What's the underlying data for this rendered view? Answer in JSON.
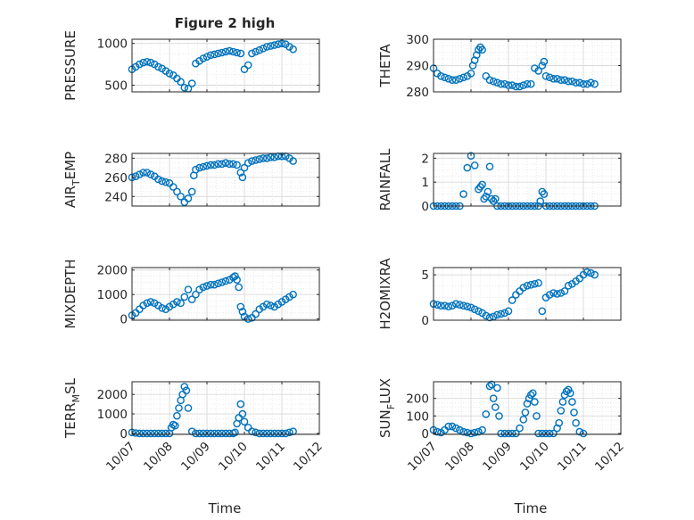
{
  "figure_title": "Figure 2 high",
  "chart_data": [
    {
      "type": "scatter",
      "ylabel": "PRESSURE",
      "xlim": [
        "10/07",
        "10/12"
      ],
      "ylim": [
        420,
        1050
      ],
      "yticks": [
        500,
        1000
      ],
      "xtick_labels": [
        "10/07",
        "10/08",
        "10/09",
        "10/10",
        "10/11",
        "10/12"
      ],
      "grid": "on",
      "series": [
        {
          "x": [
            0.0,
            0.1,
            0.2,
            0.3,
            0.4,
            0.5,
            0.6,
            0.7,
            0.8,
            0.9,
            1.0,
            1.1,
            1.2,
            1.3,
            1.4,
            1.5,
            1.6,
            1.7,
            1.8,
            1.9,
            2.0,
            2.1,
            2.2,
            2.3,
            2.4,
            2.5,
            2.6,
            2.7,
            2.8,
            2.9,
            3.0,
            3.1,
            3.2,
            3.3,
            3.4,
            3.5,
            3.6,
            3.7,
            3.8,
            3.9,
            4.0,
            4.1,
            4.2,
            4.3
          ],
          "y": [
            690,
            720,
            750,
            770,
            780,
            770,
            750,
            720,
            700,
            670,
            640,
            620,
            580,
            540,
            470,
            460,
            520,
            760,
            790,
            820,
            840,
            860,
            870,
            880,
            890,
            900,
            910,
            900,
            890,
            880,
            690,
            740,
            880,
            900,
            920,
            940,
            960,
            970,
            980,
            990,
            1000,
            990,
            960,
            930
          ]
        }
      ]
    },
    {
      "type": "scatter",
      "ylabel": "THETA",
      "xlim": [
        "10/07",
        "10/12"
      ],
      "ylim": [
        280,
        300
      ],
      "yticks": [
        280,
        290,
        300
      ],
      "xtick_labels": [
        "10/07",
        "10/08",
        "10/09",
        "10/10",
        "10/11",
        "10/12"
      ],
      "grid": "on",
      "series": [
        {
          "x": [
            0.0,
            0.1,
            0.2,
            0.3,
            0.4,
            0.5,
            0.6,
            0.7,
            0.8,
            0.9,
            1.0,
            1.05,
            1.1,
            1.15,
            1.2,
            1.25,
            1.3,
            1.4,
            1.5,
            1.6,
            1.7,
            1.8,
            1.9,
            2.0,
            2.1,
            2.2,
            2.3,
            2.4,
            2.5,
            2.6,
            2.7,
            2.8,
            2.9,
            2.95,
            3.0,
            3.1,
            3.2,
            3.3,
            3.4,
            3.5,
            3.6,
            3.7,
            3.8,
            3.9,
            4.0,
            4.1,
            4.2,
            4.3
          ],
          "y": [
            289,
            287,
            286,
            285.5,
            285,
            284.5,
            284.5,
            285,
            285.5,
            286,
            287,
            290,
            292,
            294,
            296,
            297,
            296,
            286,
            284.5,
            284,
            283.5,
            283,
            283,
            282.5,
            282.5,
            282,
            282,
            282.5,
            283,
            283,
            289,
            288,
            290,
            291.5,
            286,
            285.5,
            285,
            285,
            284.5,
            284.5,
            284,
            284,
            283.5,
            283.5,
            283,
            283,
            283.5,
            283
          ]
        }
      ]
    },
    {
      "type": "scatter",
      "ylabel": "AIR_TEMP",
      "xlim": [
        "10/07",
        "10/12"
      ],
      "ylim": [
        230,
        285
      ],
      "yticks": [
        240,
        260,
        280
      ],
      "xtick_labels": [
        "10/07",
        "10/08",
        "10/09",
        "10/10",
        "10/11",
        "10/12"
      ],
      "grid": "on",
      "series": [
        {
          "x": [
            0.0,
            0.1,
            0.2,
            0.3,
            0.4,
            0.5,
            0.6,
            0.7,
            0.8,
            0.9,
            1.0,
            1.1,
            1.2,
            1.3,
            1.4,
            1.5,
            1.6,
            1.65,
            1.7,
            1.8,
            1.9,
            2.0,
            2.1,
            2.2,
            2.3,
            2.4,
            2.5,
            2.6,
            2.7,
            2.8,
            2.9,
            2.95,
            3.0,
            3.1,
            3.2,
            3.3,
            3.4,
            3.5,
            3.6,
            3.7,
            3.8,
            3.9,
            4.0,
            4.1,
            4.2,
            4.3
          ],
          "y": [
            260,
            261,
            263,
            265,
            265,
            263,
            261,
            258,
            256,
            255,
            254,
            250,
            245,
            240,
            234,
            238,
            245,
            262,
            268,
            270,
            271,
            272,
            273,
            273,
            274,
            274,
            275,
            274,
            274,
            273,
            265,
            260,
            270,
            275,
            277,
            278,
            279,
            280,
            280,
            281,
            281,
            282,
            282,
            282,
            280,
            277
          ]
        }
      ]
    },
    {
      "type": "scatter",
      "ylabel": "RAINFALL",
      "xlim": [
        "10/07",
        "10/12"
      ],
      "ylim": [
        0,
        2.2
      ],
      "yticks": [
        0,
        1,
        2
      ],
      "xtick_labels": [
        "10/07",
        "10/08",
        "10/09",
        "10/10",
        "10/11",
        "10/12"
      ],
      "grid": "on",
      "series": [
        {
          "x": [
            0.0,
            0.1,
            0.2,
            0.3,
            0.4,
            0.5,
            0.6,
            0.7,
            0.8,
            0.9,
            1.0,
            1.1,
            1.2,
            1.25,
            1.3,
            1.35,
            1.4,
            1.45,
            1.5,
            1.55,
            1.6,
            1.65,
            1.7,
            1.8,
            1.9,
            2.0,
            2.1,
            2.2,
            2.3,
            2.4,
            2.5,
            2.6,
            2.7,
            2.8,
            2.85,
            2.9,
            2.95,
            3.0,
            3.1,
            3.2,
            3.3,
            3.4,
            3.5,
            3.6,
            3.7,
            3.8,
            3.9,
            4.0,
            4.1,
            4.2,
            4.3
          ],
          "y": [
            0,
            0,
            0,
            0,
            0,
            0,
            0,
            0,
            0.5,
            1.6,
            2.1,
            1.7,
            0.7,
            0.8,
            0.9,
            0.3,
            0.4,
            0.6,
            1.65,
            0.3,
            0.2,
            0.3,
            0,
            0,
            0,
            0,
            0,
            0,
            0,
            0,
            0,
            0,
            0,
            0,
            0.2,
            0.6,
            0.5,
            0,
            0,
            0,
            0,
            0,
            0,
            0,
            0,
            0,
            0,
            0,
            0,
            0,
            0
          ]
        }
      ]
    },
    {
      "type": "scatter",
      "ylabel": "MIXDEPTH",
      "xlim": [
        "10/07",
        "10/12"
      ],
      "ylim": [
        -50,
        2100
      ],
      "yticks": [
        0,
        1000,
        2000
      ],
      "xtick_labels": [
        "10/07",
        "10/08",
        "10/09",
        "10/10",
        "10/11",
        "10/12"
      ],
      "grid": "on",
      "series": [
        {
          "x": [
            0.0,
            0.1,
            0.2,
            0.3,
            0.4,
            0.5,
            0.6,
            0.7,
            0.8,
            0.9,
            1.0,
            1.1,
            1.2,
            1.3,
            1.4,
            1.5,
            1.6,
            1.7,
            1.8,
            1.9,
            2.0,
            2.1,
            2.2,
            2.3,
            2.4,
            2.5,
            2.6,
            2.7,
            2.75,
            2.8,
            2.85,
            2.9,
            2.95,
            3.0,
            3.1,
            3.2,
            3.3,
            3.4,
            3.5,
            3.6,
            3.7,
            3.8,
            3.9,
            4.0,
            4.1,
            4.2,
            4.3
          ],
          "y": [
            150,
            250,
            400,
            550,
            650,
            700,
            650,
            550,
            450,
            400,
            500,
            600,
            700,
            650,
            900,
            1200,
            800,
            1000,
            1200,
            1300,
            1350,
            1400,
            1400,
            1450,
            1500,
            1550,
            1600,
            1700,
            1750,
            1600,
            1300,
            500,
            300,
            100,
            0,
            50,
            200,
            400,
            500,
            600,
            550,
            500,
            600,
            700,
            800,
            900,
            1000
          ]
        }
      ]
    },
    {
      "type": "scatter",
      "ylabel": "H2OMIXRA",
      "xlim": [
        "10/07",
        "10/12"
      ],
      "ylim": [
        0,
        5.8
      ],
      "yticks": [
        0,
        5
      ],
      "xtick_labels": [
        "10/07",
        "10/08",
        "10/09",
        "10/10",
        "10/11",
        "10/12"
      ],
      "grid": "on",
      "series": [
        {
          "x": [
            0.0,
            0.1,
            0.2,
            0.3,
            0.4,
            0.5,
            0.6,
            0.7,
            0.8,
            0.9,
            1.0,
            1.1,
            1.2,
            1.3,
            1.4,
            1.5,
            1.6,
            1.7,
            1.8,
            1.9,
            2.0,
            2.1,
            2.2,
            2.3,
            2.4,
            2.5,
            2.6,
            2.7,
            2.8,
            2.9,
            3.0,
            3.1,
            3.2,
            3.3,
            3.4,
            3.5,
            3.6,
            3.7,
            3.8,
            3.9,
            4.0,
            4.1,
            4.2,
            4.3
          ],
          "y": [
            1.8,
            1.7,
            1.6,
            1.6,
            1.5,
            1.6,
            1.8,
            1.7,
            1.6,
            1.5,
            1.4,
            1.2,
            1.0,
            0.8,
            0.5,
            0.3,
            0.4,
            0.6,
            0.7,
            0.8,
            1.0,
            2.2,
            2.8,
            3.2,
            3.6,
            3.8,
            3.9,
            4.0,
            4.1,
            1.0,
            2.5,
            2.8,
            3.0,
            2.9,
            3.0,
            3.2,
            3.8,
            4.0,
            4.3,
            4.6,
            5.0,
            5.3,
            5.2,
            5.0
          ]
        }
      ]
    },
    {
      "type": "scatter",
      "ylabel": "TERR_MSL",
      "xlim": [
        "10/07",
        "10/12"
      ],
      "ylim": [
        -50,
        2650
      ],
      "yticks": [
        0,
        1000,
        2000
      ],
      "xtick_labels": [
        "10/07",
        "10/08",
        "10/09",
        "10/10",
        "10/11",
        "10/12"
      ],
      "grid": "on",
      "series": [
        {
          "x": [
            0.0,
            0.1,
            0.2,
            0.3,
            0.4,
            0.5,
            0.6,
            0.7,
            0.8,
            0.9,
            1.0,
            1.05,
            1.1,
            1.15,
            1.2,
            1.25,
            1.3,
            1.35,
            1.4,
            1.45,
            1.5,
            1.6,
            1.7,
            1.8,
            1.9,
            2.0,
            2.1,
            2.2,
            2.3,
            2.4,
            2.5,
            2.6,
            2.7,
            2.75,
            2.8,
            2.85,
            2.9,
            2.95,
            3.0,
            3.1,
            3.2,
            3.3,
            3.4,
            3.5,
            3.6,
            3.7,
            3.8,
            3.9,
            4.0,
            4.1,
            4.2,
            4.3
          ],
          "y": [
            50,
            20,
            0,
            0,
            0,
            0,
            0,
            0,
            0,
            0,
            0,
            300,
            450,
            400,
            900,
            1300,
            1700,
            2000,
            2400,
            2200,
            1300,
            100,
            0,
            0,
            0,
            0,
            0,
            0,
            0,
            0,
            0,
            0,
            0,
            50,
            500,
            800,
            1500,
            1000,
            600,
            300,
            100,
            50,
            0,
            0,
            0,
            0,
            0,
            0,
            0,
            0,
            50,
            100
          ]
        }
      ]
    },
    {
      "type": "scatter",
      "ylabel": "SUN_FLUX",
      "xlim": [
        "10/07",
        "10/12"
      ],
      "ylim": [
        -5,
        295
      ],
      "yticks": [
        0,
        100,
        200
      ],
      "xtick_labels": [
        "10/07",
        "10/08",
        "10/09",
        "10/10",
        "10/11",
        "10/12"
      ],
      "grid": "on",
      "series": [
        {
          "x": [
            0.0,
            0.1,
            0.2,
            0.3,
            0.4,
            0.5,
            0.6,
            0.7,
            0.8,
            0.9,
            1.0,
            1.1,
            1.2,
            1.3,
            1.4,
            1.5,
            1.55,
            1.6,
            1.65,
            1.7,
            1.75,
            1.8,
            1.9,
            2.0,
            2.1,
            2.2,
            2.3,
            2.4,
            2.45,
            2.5,
            2.55,
            2.6,
            2.65,
            2.7,
            2.75,
            2.8,
            2.9,
            3.0,
            3.1,
            3.2,
            3.3,
            3.35,
            3.4,
            3.45,
            3.5,
            3.55,
            3.6,
            3.65,
            3.7,
            3.75,
            3.8,
            3.9,
            4.0
          ],
          "y": [
            20,
            10,
            5,
            20,
            40,
            40,
            30,
            20,
            10,
            5,
            0,
            5,
            10,
            20,
            110,
            270,
            280,
            200,
            150,
            260,
            100,
            0,
            0,
            0,
            0,
            0,
            30,
            80,
            120,
            170,
            200,
            220,
            230,
            180,
            100,
            0,
            0,
            0,
            0,
            0,
            30,
            60,
            130,
            180,
            220,
            240,
            250,
            230,
            180,
            120,
            60,
            10,
            0
          ]
        }
      ]
    }
  ],
  "xlabel_left": "Time",
  "xlabel_right": "Time",
  "colors": {
    "marker": "#0072BD",
    "axis": "#262626",
    "grid": "#d9d9d9",
    "background": "#ffffff"
  }
}
